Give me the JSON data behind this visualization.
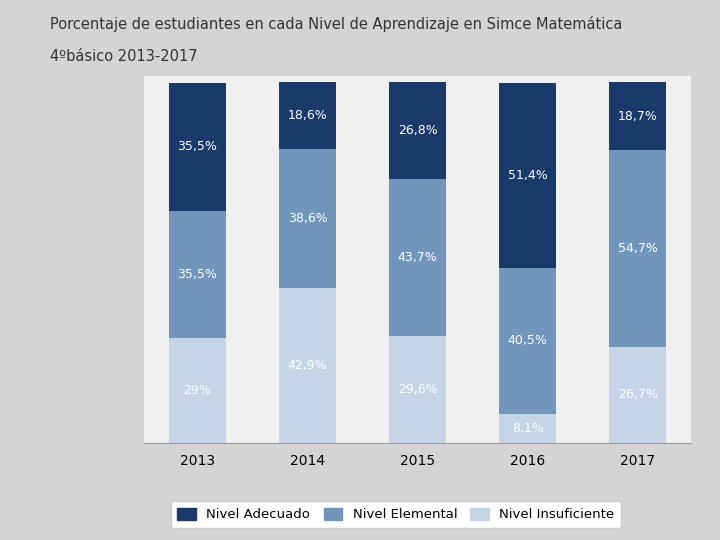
{
  "title_line1": "Porcentaje de estudiantes en cada Nivel de Aprendizaje en Simce Matemática",
  "title_line2": "4ºbásico 2013-2017",
  "years": [
    "2013",
    "2014",
    "2015",
    "2016",
    "2017"
  ],
  "nivel_insuficiente": [
    29.0,
    42.9,
    29.6,
    8.1,
    26.7
  ],
  "nivel_elemental": [
    35.5,
    38.6,
    43.7,
    40.5,
    54.7
  ],
  "nivel_adecuado": [
    35.5,
    18.6,
    26.8,
    51.4,
    18.7
  ],
  "labels_insuficiente": [
    "29%",
    "42,9%",
    "29,6%",
    "8,1%",
    "26,7%"
  ],
  "labels_elemental": [
    "35,5%",
    "38,6%",
    "43,7%",
    "40,5%",
    "54,7%"
  ],
  "labels_adecuado": [
    "35,5%",
    "18,6%",
    "26,8%",
    "51,4%",
    "18,7%"
  ],
  "color_insuficiente": "#c5d5e8",
  "color_elemental": "#7096bc",
  "color_adecuado": "#1a3a6b",
  "label_adecuado": "Nivel Adecuado",
  "label_elemental": "Nivel Elemental",
  "label_insuficiente": "Nivel Insuficiente",
  "bar_width": 0.52,
  "background_color": "#d4d4d4",
  "plot_bg_color": "#f0f0f0",
  "title_fontsize": 10.5,
  "label_fontsize": 9,
  "tick_fontsize": 10,
  "legend_fontsize": 9.5
}
